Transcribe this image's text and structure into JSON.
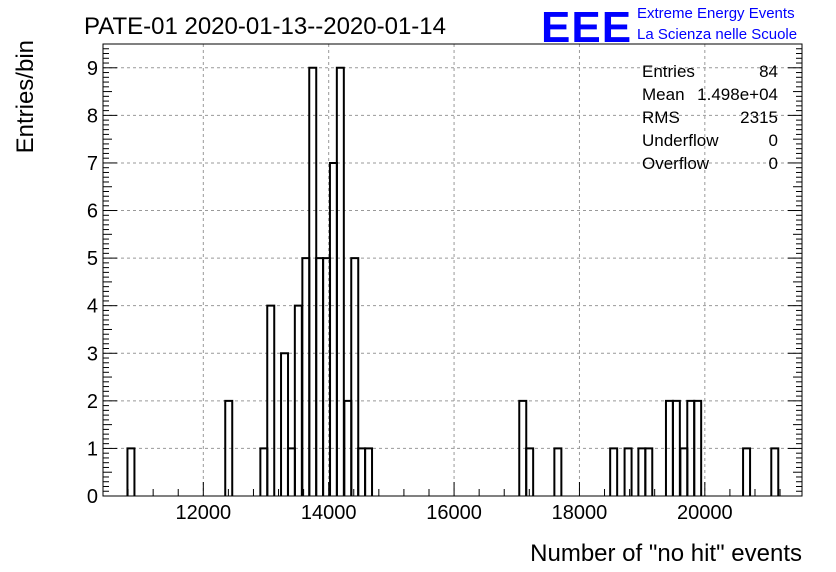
{
  "chart_data": {
    "type": "bar",
    "title": "PATE-01 2020-01-13--2020-01-14",
    "xlabel": "Number of \"no hit\" events",
    "ylabel": "Entries/bin",
    "xlim": [
      10400,
      21550
    ],
    "ylim": [
      0,
      9.5
    ],
    "x_ticks": [
      12000,
      14000,
      16000,
      18000,
      20000
    ],
    "y_ticks": [
      0,
      1,
      2,
      3,
      4,
      5,
      6,
      7,
      8,
      9
    ],
    "grid": true,
    "histogram_style": "step",
    "bin_width": 111.5,
    "bins": [
      {
        "x": 10790,
        "count": 1
      },
      {
        "x": 12350,
        "count": 2
      },
      {
        "x": 12910,
        "count": 1
      },
      {
        "x": 13020,
        "count": 4
      },
      {
        "x": 13240,
        "count": 3
      },
      {
        "x": 13350,
        "count": 1
      },
      {
        "x": 13460,
        "count": 4
      },
      {
        "x": 13580,
        "count": 5
      },
      {
        "x": 13690,
        "count": 9
      },
      {
        "x": 13800,
        "count": 5
      },
      {
        "x": 13910,
        "count": 5
      },
      {
        "x": 14020,
        "count": 7
      },
      {
        "x": 14130,
        "count": 9
      },
      {
        "x": 14250,
        "count": 2
      },
      {
        "x": 14360,
        "count": 5
      },
      {
        "x": 14470,
        "count": 1
      },
      {
        "x": 14580,
        "count": 1
      },
      {
        "x": 17040,
        "count": 2
      },
      {
        "x": 17150,
        "count": 1
      },
      {
        "x": 17600,
        "count": 1
      },
      {
        "x": 18490,
        "count": 1
      },
      {
        "x": 18720,
        "count": 1
      },
      {
        "x": 18940,
        "count": 1
      },
      {
        "x": 19050,
        "count": 1
      },
      {
        "x": 19380,
        "count": 2
      },
      {
        "x": 19490,
        "count": 2
      },
      {
        "x": 19610,
        "count": 1
      },
      {
        "x": 19720,
        "count": 2
      },
      {
        "x": 19830,
        "count": 2
      },
      {
        "x": 20610,
        "count": 1
      },
      {
        "x": 21060,
        "count": 1
      }
    ]
  },
  "stats": [
    {
      "label": "Entries",
      "value": "84"
    },
    {
      "label": "Mean",
      "value": "1.498e+04"
    },
    {
      "label": "RMS",
      "value": "2315"
    },
    {
      "label": "Underflow",
      "value": "0"
    },
    {
      "label": "Overflow",
      "value": "0"
    }
  ],
  "logo": {
    "mark": "EEE",
    "line1": "Extreme Energy Events",
    "line2": "La Scienza nelle Scuole",
    "color": "#0000ff"
  }
}
